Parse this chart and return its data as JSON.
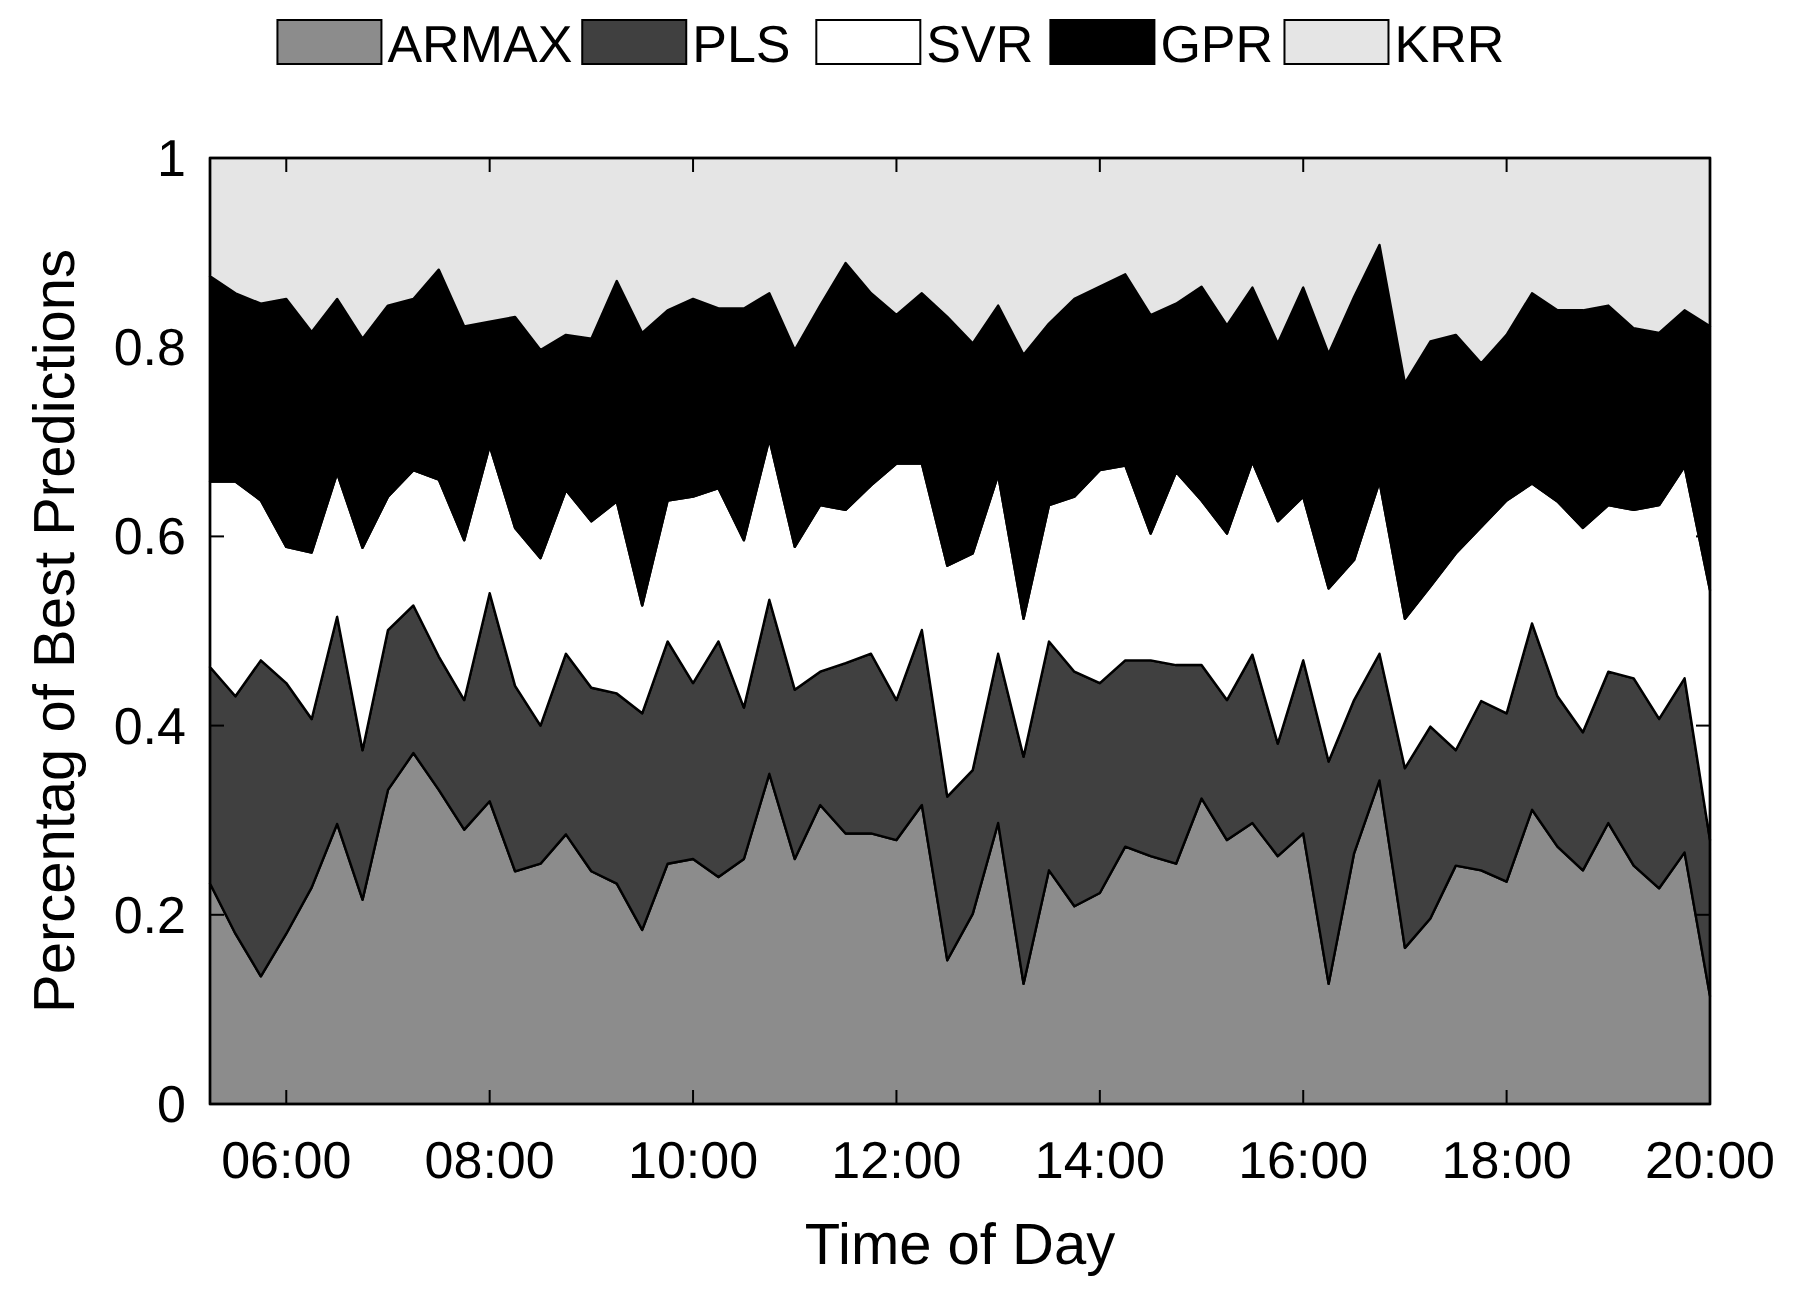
{
  "chart_data": {
    "type": "area",
    "stacked": true,
    "xlabel": "Time of Day",
    "ylabel": "Percentag of Best Predictions",
    "x": [
      5.25,
      5.5,
      5.75,
      6,
      6.25,
      6.5,
      6.75,
      7,
      7.25,
      7.5,
      7.75,
      8,
      8.25,
      8.5,
      8.75,
      9,
      9.25,
      9.5,
      9.75,
      10,
      10.25,
      10.5,
      10.75,
      11,
      11.25,
      11.5,
      11.75,
      12,
      12.25,
      12.5,
      12.75,
      13,
      13.25,
      13.5,
      13.75,
      14,
      14.25,
      14.5,
      14.75,
      15,
      15.25,
      15.5,
      15.75,
      16,
      16.25,
      16.5,
      16.75,
      17,
      17.25,
      17.5,
      17.75,
      18,
      18.25,
      18.5,
      18.75,
      19,
      19.25,
      19.5,
      19.75,
      20
    ],
    "xlim": [
      5.25,
      20
    ],
    "xticks": [
      {
        "value": 6,
        "label": "06:00"
      },
      {
        "value": 8,
        "label": "08:00"
      },
      {
        "value": 10,
        "label": "10:00"
      },
      {
        "value": 12,
        "label": "12:00"
      },
      {
        "value": 14,
        "label": "14:00"
      },
      {
        "value": 16,
        "label": "16:00"
      },
      {
        "value": 18,
        "label": "18:00"
      },
      {
        "value": 20,
        "label": "20:00"
      }
    ],
    "ylim": [
      0,
      1
    ],
    "yticks": [
      0,
      0.2,
      0.4,
      0.6,
      0.8,
      1
    ],
    "legend": "top",
    "series": [
      {
        "name": "ARMAX",
        "color": "#8c8c8c",
        "values": [
          0.233,
          0.18,
          0.135,
          0.18,
          0.229,
          0.296,
          0.216,
          0.332,
          0.371,
          0.332,
          0.29,
          0.32,
          0.246,
          0.254,
          0.285,
          0.246,
          0.233,
          0.184,
          0.254,
          0.259,
          0.24,
          0.259,
          0.349,
          0.259,
          0.316,
          0.286,
          0.286,
          0.279,
          0.316,
          0.152,
          0.201,
          0.297,
          0.127,
          0.247,
          0.209,
          0.223,
          0.272,
          0.262,
          0.254,
          0.323,
          0.279,
          0.297,
          0.262,
          0.286,
          0.127,
          0.265,
          0.342,
          0.165,
          0.196,
          0.252,
          0.247,
          0.235,
          0.311,
          0.272,
          0.247,
          0.297,
          0.252,
          0.228,
          0.266,
          0.114
        ]
      },
      {
        "name": "PLS",
        "color": "#404040",
        "values": [
          0.229,
          0.251,
          0.334,
          0.265,
          0.178,
          0.219,
          0.158,
          0.169,
          0.156,
          0.141,
          0.137,
          0.22,
          0.196,
          0.146,
          0.191,
          0.194,
          0.201,
          0.229,
          0.235,
          0.186,
          0.249,
          0.16,
          0.184,
          0.179,
          0.141,
          0.18,
          0.19,
          0.148,
          0.185,
          0.173,
          0.152,
          0.179,
          0.24,
          0.242,
          0.248,
          0.222,
          0.197,
          0.207,
          0.21,
          0.141,
          0.148,
          0.178,
          0.119,
          0.183,
          0.235,
          0.162,
          0.134,
          0.19,
          0.203,
          0.122,
          0.179,
          0.178,
          0.197,
          0.159,
          0.146,
          0.16,
          0.198,
          0.179,
          0.184,
          0.165
        ]
      },
      {
        "name": "SVR",
        "color": "#ffffff",
        "values": [
          0.196,
          0.227,
          0.169,
          0.144,
          0.176,
          0.152,
          0.214,
          0.141,
          0.143,
          0.187,
          0.169,
          0.156,
          0.167,
          0.177,
          0.173,
          0.176,
          0.203,
          0.114,
          0.149,
          0.197,
          0.162,
          0.177,
          0.17,
          0.151,
          0.176,
          0.162,
          0.178,
          0.25,
          0.176,
          0.244,
          0.229,
          0.189,
          0.146,
          0.144,
          0.185,
          0.225,
          0.206,
          0.134,
          0.204,
          0.174,
          0.176,
          0.204,
          0.235,
          0.173,
          0.183,
          0.148,
          0.182,
          0.158,
          0.148,
          0.208,
          0.184,
          0.225,
          0.148,
          0.206,
          0.216,
          0.176,
          0.178,
          0.226,
          0.224,
          0.264
        ]
      },
      {
        "name": "GPR",
        "color": "#000000",
        "values": [
          0.217,
          0.199,
          0.208,
          0.262,
          0.233,
          0.184,
          0.221,
          0.202,
          0.181,
          0.222,
          0.226,
          0.131,
          0.223,
          0.22,
          0.164,
          0.193,
          0.233,
          0.288,
          0.201,
          0.209,
          0.19,
          0.245,
          0.154,
          0.208,
          0.211,
          0.261,
          0.203,
          0.157,
          0.18,
          0.263,
          0.222,
          0.179,
          0.279,
          0.192,
          0.209,
          0.194,
          0.202,
          0.231,
          0.178,
          0.226,
          0.22,
          0.184,
          0.188,
          0.221,
          0.248,
          0.278,
          0.25,
          0.249,
          0.259,
          0.231,
          0.173,
          0.175,
          0.201,
          0.202,
          0.23,
          0.211,
          0.192,
          0.182,
          0.165,
          0.279
        ]
      },
      {
        "name": "KRR",
        "color": "#e5e5e5",
        "values": [
          0.125,
          0.143,
          0.154,
          0.149,
          0.184,
          0.149,
          0.191,
          0.156,
          0.149,
          0.118,
          0.178,
          0.173,
          0.168,
          0.203,
          0.187,
          0.191,
          0.13,
          0.185,
          0.161,
          0.149,
          0.159,
          0.159,
          0.143,
          0.203,
          0.156,
          0.111,
          0.143,
          0.166,
          0.143,
          0.168,
          0.196,
          0.156,
          0.208,
          0.175,
          0.149,
          0.136,
          0.123,
          0.166,
          0.154,
          0.136,
          0.177,
          0.137,
          0.196,
          0.137,
          0.207,
          0.147,
          0.092,
          0.238,
          0.194,
          0.187,
          0.217,
          0.187,
          0.143,
          0.161,
          0.161,
          0.156,
          0.18,
          0.185,
          0.161,
          0.178
        ]
      }
    ]
  }
}
